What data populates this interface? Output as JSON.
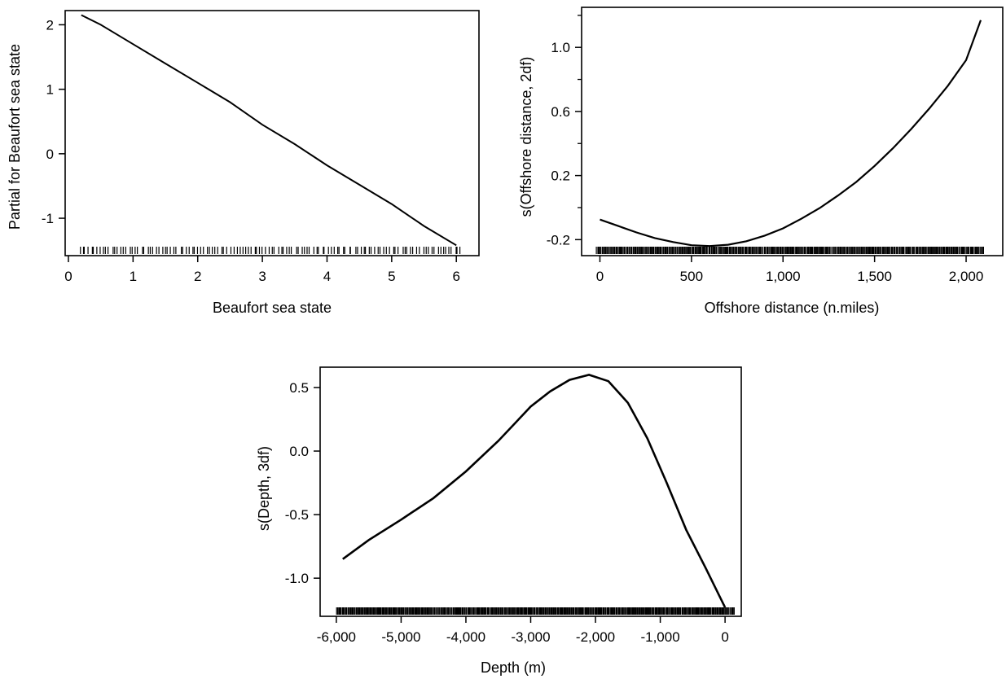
{
  "chart_data": [
    {
      "type": "line",
      "xlabel": "Beaufort sea state",
      "ylabel": "Partial for Beaufort sea state",
      "xlim": [
        -0.05,
        6.35
      ],
      "ylim": [
        -1.58,
        2.22
      ],
      "xticks": [
        0,
        1,
        2,
        3,
        4,
        5,
        6
      ],
      "xtick_labels": [
        "0",
        "1",
        "2",
        "3",
        "4",
        "5",
        "6"
      ],
      "yticks": [
        -1,
        0,
        1,
        2
      ],
      "ytick_labels": [
        "-1",
        "0",
        "1",
        "2"
      ],
      "yminor_ticks": [],
      "rug_range": [
        0.15,
        6.1
      ],
      "rug_count": 130,
      "series": [
        {
          "x": [
            0.2,
            0.5,
            1.0,
            1.5,
            2.0,
            2.5,
            3.0,
            3.5,
            4.0,
            4.5,
            5.0,
            5.5,
            6.0
          ],
          "y": [
            2.15,
            2.0,
            1.7,
            1.4,
            1.1,
            0.8,
            0.45,
            0.15,
            -0.18,
            -0.48,
            -0.78,
            -1.12,
            -1.42
          ]
        }
      ]
    },
    {
      "type": "line",
      "xlabel": "Offshore distance (n.miles)",
      "ylabel": "s(Offshore distance, 2df)",
      "xlim": [
        -100,
        2200
      ],
      "ylim": [
        -0.3,
        1.25
      ],
      "xticks": [
        0,
        500,
        1000,
        1500,
        2000
      ],
      "xtick_labels": [
        "0",
        "500",
        "1,000",
        "1,500",
        "2,000"
      ],
      "yticks": [
        -0.2,
        0.2,
        0.6,
        1.0
      ],
      "ytick_labels": [
        "-0.2",
        "0.2",
        "0.6",
        "1.0"
      ],
      "yminor_ticks": [
        0.0,
        0.4,
        0.8,
        1.2
      ],
      "rug_range": [
        -20,
        2100
      ],
      "rug_count": 420,
      "series": [
        {
          "x": [
            0,
            100,
            200,
            300,
            400,
            500,
            600,
            700,
            800,
            900,
            1000,
            1100,
            1200,
            1300,
            1400,
            1500,
            1600,
            1700,
            1800,
            1900,
            2000,
            2080
          ],
          "y": [
            -0.075,
            -0.115,
            -0.155,
            -0.19,
            -0.215,
            -0.235,
            -0.24,
            -0.232,
            -0.21,
            -0.175,
            -0.13,
            -0.07,
            -0.003,
            0.075,
            0.16,
            0.26,
            0.37,
            0.49,
            0.62,
            0.76,
            0.92,
            1.17
          ]
        }
      ]
    },
    {
      "type": "line",
      "xlabel": "Depth (m)",
      "ylabel": "s(Depth, 3df)",
      "xlim": [
        -6250,
        250
      ],
      "ylim": [
        -1.3,
        0.66
      ],
      "xticks": [
        -6000,
        -5000,
        -4000,
        -3000,
        -2000,
        -1000,
        0
      ],
      "xtick_labels": [
        "-6,000",
        "-5,000",
        "-4,000",
        "-3,000",
        "-2,000",
        "-1,000",
        "0"
      ],
      "yticks": [
        -1.0,
        -0.5,
        0.0,
        0.5
      ],
      "ytick_labels": [
        "-1.0",
        "-0.5",
        "0.0",
        "0.5"
      ],
      "yminor_ticks": [],
      "rug_range": [
        -6000,
        150
      ],
      "rug_count": 500,
      "series": [
        {
          "x": [
            -5900,
            -5500,
            -5000,
            -4500,
            -4000,
            -3500,
            -3000,
            -2700,
            -2400,
            -2100,
            -1800,
            -1500,
            -1200,
            -900,
            -600,
            -300,
            0
          ],
          "y": [
            -0.85,
            -0.7,
            -0.54,
            -0.37,
            -0.16,
            0.08,
            0.35,
            0.47,
            0.56,
            0.6,
            0.55,
            0.38,
            0.1,
            -0.25,
            -0.62,
            -0.92,
            -1.23
          ]
        }
      ]
    }
  ]
}
